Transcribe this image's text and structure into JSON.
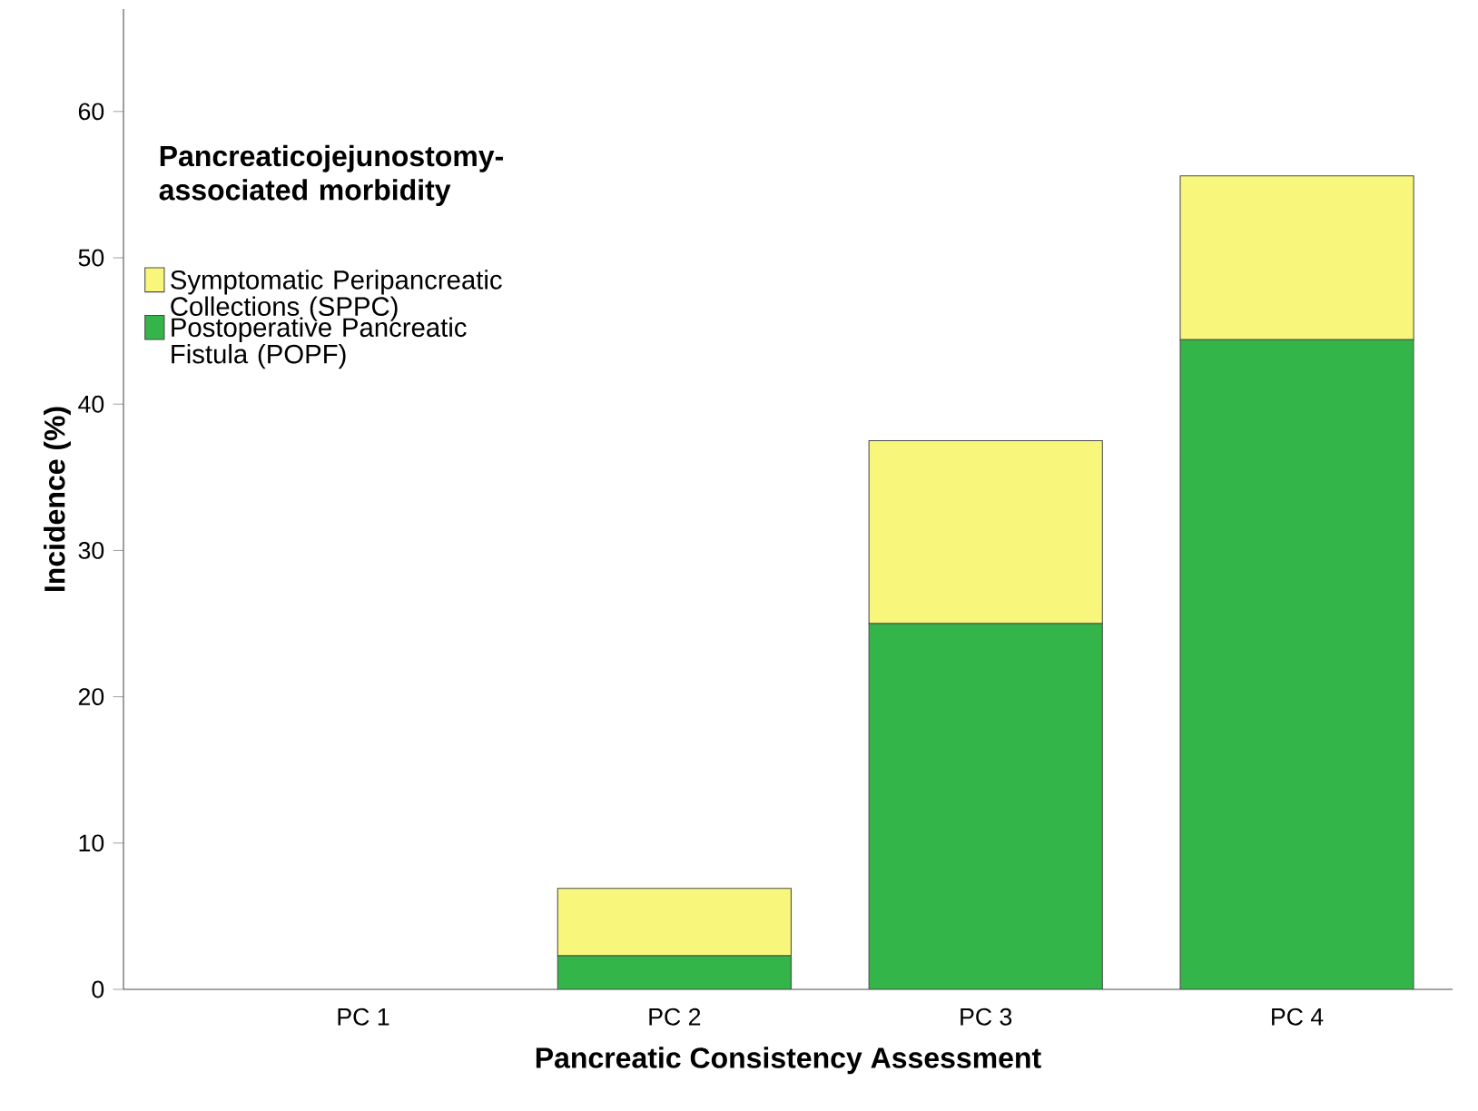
{
  "chart_data": {
    "type": "bar",
    "stacked": true,
    "xlabel": "Pancreatic Consistency Assessment",
    "ylabel": "Incidence (%)",
    "legend_title": "Pancreaticojejunostomy-associated morbidity",
    "categories": [
      "PC 1",
      "PC 2",
      "PC 3",
      "PC 4"
    ],
    "series": [
      {
        "name": "Postoperative Pancreatic Fistula (POPF)",
        "color": "#33b54a",
        "values": [
          0,
          2.3,
          25,
          44.4
        ]
      },
      {
        "name": "Symptomatic Peripancreatic Collections (SPPC)",
        "color": "#f8f77c",
        "values": [
          0,
          4.6,
          12.5,
          11.2
        ]
      }
    ],
    "ylim": [
      0,
      67
    ],
    "yticks": [
      0,
      10,
      20,
      30,
      40,
      50,
      60
    ],
    "grid": false,
    "legend": "top left"
  }
}
